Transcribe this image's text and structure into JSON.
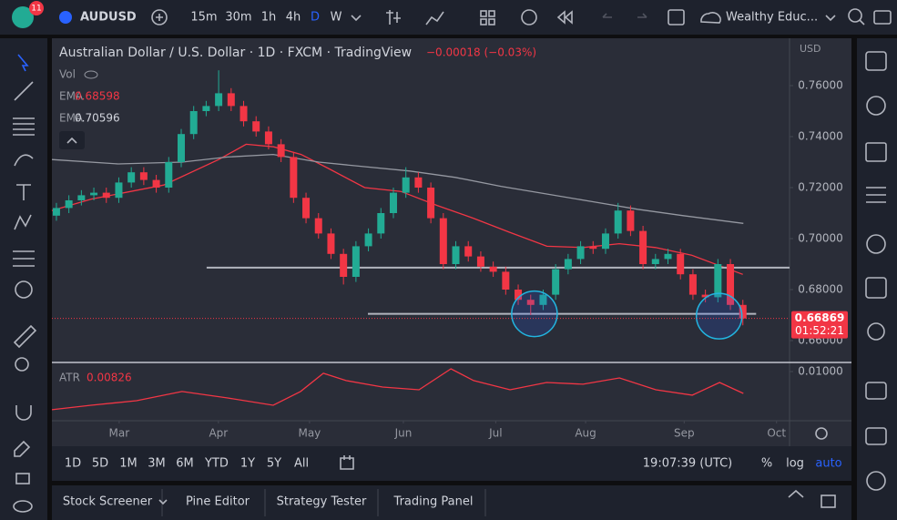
{
  "toolbar": {
    "badge": "11",
    "symbol": "AUDUSD",
    "intervals": [
      "15m",
      "30m",
      "1h",
      "4h",
      "D",
      "W"
    ],
    "active_interval": "D",
    "account": "Wealthy Educ..."
  },
  "chart_data": {
    "type": "candlestick",
    "title": "Australian Dollar / U.S. Dollar · 1D · FXCM · TradingView",
    "change": "−0.00018 (−0.03%)",
    "currency": "USD",
    "volume_label": "Vol",
    "x": [
      0,
      1,
      2,
      3,
      4,
      5,
      6,
      7,
      8,
      9,
      10,
      11,
      12,
      13,
      14,
      15,
      16,
      17,
      18,
      19,
      20,
      21,
      22,
      23,
      24,
      25,
      26,
      27,
      28,
      29,
      30,
      31,
      32,
      33,
      34,
      35,
      36,
      37,
      38,
      39,
      40,
      41,
      42,
      43,
      44,
      45,
      46,
      47,
      48,
      49,
      50,
      51,
      52,
      53,
      54,
      55
    ],
    "open": [
      0.709,
      0.712,
      0.715,
      0.717,
      0.718,
      0.716,
      0.722,
      0.726,
      0.723,
      0.72,
      0.73,
      0.741,
      0.75,
      0.752,
      0.757,
      0.752,
      0.746,
      0.742,
      0.737,
      0.732,
      0.716,
      0.708,
      0.702,
      0.694,
      0.685,
      0.697,
      0.702,
      0.71,
      0.718,
      0.724,
      0.72,
      0.708,
      0.69,
      0.697,
      0.693,
      0.689,
      0.687,
      0.68,
      0.676,
      0.674,
      0.678,
      0.688,
      0.692,
      0.697,
      0.696,
      0.702,
      0.711,
      0.703,
      0.69,
      0.692,
      0.694,
      0.686,
      0.678,
      0.677,
      0.69,
      0.674
    ],
    "high": [
      0.714,
      0.717,
      0.719,
      0.72,
      0.72,
      0.724,
      0.728,
      0.728,
      0.725,
      0.732,
      0.743,
      0.752,
      0.754,
      0.766,
      0.759,
      0.754,
      0.748,
      0.744,
      0.739,
      0.734,
      0.718,
      0.71,
      0.704,
      0.696,
      0.699,
      0.704,
      0.712,
      0.72,
      0.728,
      0.726,
      0.722,
      0.71,
      0.699,
      0.699,
      0.695,
      0.691,
      0.689,
      0.682,
      0.678,
      0.68,
      0.69,
      0.694,
      0.699,
      0.699,
      0.704,
      0.714,
      0.713,
      0.705,
      0.694,
      0.696,
      0.696,
      0.688,
      0.68,
      0.692,
      0.692,
      0.676
    ],
    "low": [
      0.707,
      0.71,
      0.713,
      0.715,
      0.714,
      0.714,
      0.72,
      0.721,
      0.718,
      0.718,
      0.728,
      0.739,
      0.748,
      0.75,
      0.75,
      0.744,
      0.74,
      0.735,
      0.73,
      0.714,
      0.706,
      0.7,
      0.692,
      0.682,
      0.683,
      0.695,
      0.7,
      0.708,
      0.716,
      0.718,
      0.706,
      0.688,
      0.688,
      0.691,
      0.687,
      0.685,
      0.678,
      0.674,
      0.67,
      0.672,
      0.676,
      0.686,
      0.69,
      0.694,
      0.694,
      0.7,
      0.701,
      0.688,
      0.688,
      0.69,
      0.684,
      0.676,
      0.675,
      0.675,
      0.672,
      0.666
    ],
    "close": [
      0.712,
      0.715,
      0.717,
      0.718,
      0.716,
      0.722,
      0.726,
      0.723,
      0.72,
      0.73,
      0.741,
      0.75,
      0.752,
      0.757,
      0.752,
      0.746,
      0.742,
      0.737,
      0.732,
      0.716,
      0.708,
      0.702,
      0.694,
      0.685,
      0.697,
      0.702,
      0.71,
      0.718,
      0.724,
      0.72,
      0.708,
      0.69,
      0.697,
      0.693,
      0.689,
      0.687,
      0.68,
      0.676,
      0.674,
      0.678,
      0.688,
      0.692,
      0.697,
      0.696,
      0.702,
      0.711,
      0.703,
      0.69,
      0.692,
      0.694,
      0.686,
      0.678,
      0.677,
      0.69,
      0.674,
      0.66869
    ],
    "up_color": "#22ab94",
    "down_color": "#f23645",
    "xlim": [
      -0.36,
      58.74
    ],
    "xticks": [
      {
        "value": 5.03,
        "label": "Mar"
      },
      {
        "value": 12.98,
        "label": "Apr"
      },
      {
        "value": 20.28,
        "label": "May"
      },
      {
        "value": 27.8,
        "label": "Jun"
      },
      {
        "value": 35.2,
        "label": "Jul"
      },
      {
        "value": 42.4,
        "label": "Aug"
      },
      {
        "value": 50.3,
        "label": "Sep"
      },
      {
        "value": 57.7,
        "label": "Oct"
      }
    ],
    "ylim": [
      0.65143,
      0.77857
    ],
    "yticks": [
      {
        "value": 0.76,
        "label": "0.76000"
      },
      {
        "value": 0.74,
        "label": "0.74000"
      },
      {
        "value": 0.72,
        "label": "0.72000"
      },
      {
        "value": 0.7,
        "label": "0.70000"
      },
      {
        "value": 0.68,
        "label": "0.68000"
      },
      {
        "value": 0.66,
        "label": "0.66000"
      }
    ],
    "series": [
      {
        "name": "EMA",
        "color": "#f23645",
        "last": 0.68598,
        "x": [
          -0.36,
          2.8,
          8.6,
          13.0,
          15.2,
          17.4,
          19.6,
          21.8,
          24.7,
          27.6,
          30.5,
          33.4,
          36.3,
          39.3,
          42.2,
          45.1,
          48.0,
          50.9,
          55.0
        ],
        "values": [
          0.711,
          0.7155,
          0.721,
          0.731,
          0.737,
          0.736,
          0.733,
          0.7275,
          0.72,
          0.7185,
          0.713,
          0.708,
          0.7025,
          0.697,
          0.6965,
          0.698,
          0.6965,
          0.6935,
          0.68598
        ]
      },
      {
        "name": "EMA",
        "color": "#9598a1",
        "last": 0.70596,
        "x": [
          -0.36,
          4.96,
          10.07,
          13.72,
          17.37,
          21.02,
          24.67,
          28.32,
          31.97,
          35.62,
          39.27,
          42.92,
          46.57,
          50.22,
          55.04
        ],
        "values": [
          0.731,
          0.7293,
          0.73,
          0.732,
          0.733,
          0.73,
          0.7282,
          0.7265,
          0.724,
          0.7205,
          0.7175,
          0.7145,
          0.7115,
          0.709,
          0.70596
        ]
      }
    ],
    "lines": [
      {
        "y": 0.6886,
        "x": [
          12.04,
          58.74
        ]
      },
      {
        "y": 0.6705,
        "x": [
          24.96,
          56.06
        ]
      }
    ],
    "circles": [
      {
        "x": 38.3,
        "y": 0.6705
      },
      {
        "x": 53.1,
        "y": 0.6696
      }
    ],
    "last_price": 0.66869,
    "countdown": "01:52:21",
    "atr": {
      "name": "ATR",
      "color": "#f23645",
      "last": 0.00826,
      "ylim": [
        0.006085,
        0.010725
      ],
      "yticks": [
        {
          "value": 0.01,
          "label": "0.01000"
        }
      ],
      "x": [
        -0.36,
        2.77,
        6.42,
        10.07,
        13.72,
        17.37,
        19.56,
        21.39,
        23.21,
        26.13,
        29.05,
        31.61,
        33.43,
        36.35,
        39.27,
        42.19,
        45.11,
        48.03,
        50.95,
        53.14,
        55.04
      ],
      "values": [
        0.00696,
        0.00732,
        0.00768,
        0.00841,
        0.0079,
        0.00732,
        0.00841,
        0.00986,
        0.00928,
        0.00877,
        0.00855,
        0.01022,
        0.00928,
        0.00855,
        0.00913,
        0.00899,
        0.00949,
        0.00855,
        0.00812,
        0.00913,
        0.00826
      ]
    }
  },
  "range_bar": {
    "ranges": [
      "1D",
      "5D",
      "1M",
      "3M",
      "6M",
      "YTD",
      "1Y",
      "5Y",
      "All"
    ],
    "clock": "19:07:39 (UTC)",
    "percent": "%",
    "log": "log",
    "auto": "auto"
  },
  "tabs": [
    "Stock Screener",
    "Pine Editor",
    "Strategy Tester",
    "Trading Panel"
  ]
}
